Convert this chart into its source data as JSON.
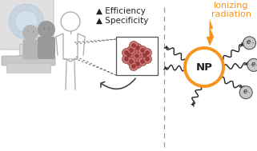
{
  "bg_color": "#ffffff",
  "orange_color": "#f7941d",
  "dark_gray": "#222222",
  "medium_gray": "#888888",
  "light_gray": "#cccccc",
  "body_outline": "#aaaaaa",
  "machine_gray": "#d0d0d0",
  "machine_dark": "#b0b0b0",
  "panel_blue": "#b8cfe0",
  "person1_color": "#b5b5b5",
  "person2_color": "#9a9a9a",
  "pink_outer": "#c87878",
  "pink_inner": "#9a3838",
  "text_ionizing": "Ionizing",
  "text_radiation": "radiation",
  "text_np": "NP",
  "text_efficiency": "▲ Efficiency",
  "text_specificity": "▲ Specificity",
  "fig_width": 3.21,
  "fig_height": 1.89,
  "dpi": 100
}
